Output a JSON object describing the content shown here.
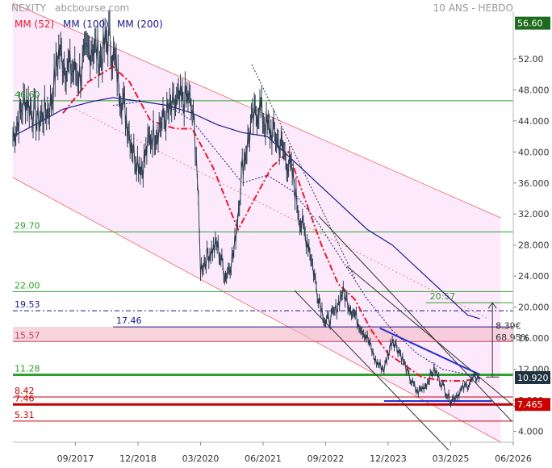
{
  "header": {
    "symbol": "NEXITY",
    "source": "abcbourse.com",
    "period": "10 ANS - HEBDO"
  },
  "legend": [
    {
      "label": "MM (52)",
      "color": "#e8192c"
    },
    {
      "label": "MM (100)",
      "color": "#1a1a8c"
    },
    {
      "label": "MM (200)",
      "color": "#1a1a8c"
    }
  ],
  "colors": {
    "price": "#2c3e50",
    "channel": "#f08080",
    "channel_fill": "#fbe6fb",
    "support_green": "#2ea02e",
    "mm52": "#e8192c",
    "mm100": "#1a1a8c",
    "mm200": "#1a1a8c",
    "blue_level": "#1a1a8c",
    "pink_zone": "#f4b8c4",
    "red_level": "#c00000",
    "badge_top": "#1e6b1e",
    "badge_last": "#1f3340",
    "badge_red": "#cc0000"
  },
  "chart_data": {
    "type": "line",
    "title": "NEXITY",
    "ylim": [
      2.6,
      57.5
    ],
    "yticks": [
      4,
      8,
      12,
      16,
      20,
      24,
      28,
      32,
      36,
      40,
      44,
      48,
      52
    ],
    "ytick_labels": [
      "4.000",
      "8.000",
      "12.000",
      "16.000",
      "20.000",
      "24.000",
      "28.000",
      "32.000",
      "36.000",
      "40.000",
      "44.000",
      "48.000",
      "52.00"
    ],
    "xlim": [
      "2016-06",
      "2026-06"
    ],
    "xtick_labels": [
      "09/2017",
      "12/2018",
      "03/2020",
      "06/2021",
      "09/2022",
      "12/2023",
      "03/2025",
      "06/2026"
    ],
    "xtick_dates": [
      "2017-09",
      "2018-12",
      "2020-03",
      "2021-06",
      "2022-09",
      "2023-12",
      "2025-03",
      "2026-06"
    ],
    "price_series": {
      "name": "NEXITY",
      "points": [
        [
          "2016-06",
          42
        ],
        [
          "2016-09",
          47
        ],
        [
          "2016-12",
          44
        ],
        [
          "2017-03",
          46
        ],
        [
          "2017-05",
          53
        ],
        [
          "2017-07",
          51
        ],
        [
          "2017-10",
          50
        ],
        [
          "2018-01",
          54
        ],
        [
          "2018-03",
          52
        ],
        [
          "2018-05",
          55
        ],
        [
          "2018-07",
          50
        ],
        [
          "2018-09",
          45
        ],
        [
          "2018-11",
          40
        ],
        [
          "2019-01",
          38
        ],
        [
          "2019-03",
          42
        ],
        [
          "2019-06",
          44
        ],
        [
          "2019-09",
          46
        ],
        [
          "2019-12",
          47
        ],
        [
          "2020-01",
          45
        ],
        [
          "2020-02",
          40
        ],
        [
          "2020-03",
          25
        ],
        [
          "2020-05",
          27
        ],
        [
          "2020-07",
          28
        ],
        [
          "2020-09",
          24
        ],
        [
          "2020-11",
          27
        ],
        [
          "2021-01",
          38
        ],
        [
          "2021-03",
          43
        ],
        [
          "2021-05",
          46
        ],
        [
          "2021-07",
          43
        ],
        [
          "2021-09",
          42
        ],
        [
          "2021-11",
          40
        ],
        [
          "2022-01",
          37
        ],
        [
          "2022-03",
          31
        ],
        [
          "2022-05",
          28
        ],
        [
          "2022-07",
          22
        ],
        [
          "2022-09",
          18
        ],
        [
          "2022-11",
          19
        ],
        [
          "2023-01",
          22
        ],
        [
          "2023-03",
          20
        ],
        [
          "2023-05",
          18
        ],
        [
          "2023-07",
          16
        ],
        [
          "2023-09",
          13
        ],
        [
          "2023-11",
          12
        ],
        [
          "2024-01",
          16
        ],
        [
          "2024-03",
          14
        ],
        [
          "2024-05",
          11
        ],
        [
          "2024-07",
          9
        ],
        [
          "2024-09",
          10
        ],
        [
          "2024-11",
          12
        ],
        [
          "2025-01",
          10
        ],
        [
          "2025-03",
          8
        ],
        [
          "2025-05",
          9
        ],
        [
          "2025-07",
          10
        ],
        [
          "2025-09",
          11
        ],
        [
          "2025-10",
          10.92
        ]
      ]
    },
    "series": [
      {
        "name": "MM (52)",
        "style": "dashdot",
        "points": [
          [
            "2017-06",
            45
          ],
          [
            "2017-12",
            49
          ],
          [
            "2018-06",
            51
          ],
          [
            "2018-10",
            49
          ],
          [
            "2019-03",
            44
          ],
          [
            "2019-09",
            43
          ],
          [
            "2020-01",
            43
          ],
          [
            "2020-06",
            38
          ],
          [
            "2020-12",
            30
          ],
          [
            "2021-04",
            34
          ],
          [
            "2021-08",
            38
          ],
          [
            "2021-12",
            40
          ],
          [
            "2022-04",
            34
          ],
          [
            "2022-08",
            28
          ],
          [
            "2022-12",
            23
          ],
          [
            "2023-04",
            21
          ],
          [
            "2023-08",
            17
          ],
          [
            "2023-12",
            14
          ],
          [
            "2024-04",
            12.5
          ],
          [
            "2024-08",
            11
          ],
          [
            "2025-01",
            10.5
          ],
          [
            "2025-06",
            10.5
          ],
          [
            "2025-10",
            10.8
          ]
        ]
      },
      {
        "name": "MM (100)",
        "style": "dotted",
        "points": [
          [
            "2018-06",
            46
          ],
          [
            "2019-01",
            46.5
          ],
          [
            "2019-07",
            46
          ],
          [
            "2020-01",
            44
          ],
          [
            "2020-07",
            40
          ],
          [
            "2021-01",
            36
          ],
          [
            "2021-07",
            37
          ],
          [
            "2022-01",
            35
          ],
          [
            "2022-07",
            31
          ],
          [
            "2023-01",
            26
          ],
          [
            "2023-07",
            21
          ],
          [
            "2024-01",
            17
          ],
          [
            "2024-07",
            14
          ],
          [
            "2025-01",
            12
          ],
          [
            "2025-10",
            11
          ]
        ]
      },
      {
        "name": "MM (200)",
        "style": "solid",
        "points": [
          [
            "2016-06",
            42
          ],
          [
            "2017-01",
            44
          ],
          [
            "2017-06",
            45.5
          ],
          [
            "2018-01",
            46.5
          ],
          [
            "2018-06",
            47
          ],
          [
            "2019-01",
            46.5
          ],
          [
            "2019-07",
            46
          ],
          [
            "2020-01",
            45
          ],
          [
            "2020-07",
            43.5
          ],
          [
            "2021-01",
            42.5
          ],
          [
            "2021-07",
            42
          ],
          [
            "2022-01",
            39
          ],
          [
            "2022-07",
            36
          ],
          [
            "2023-01",
            33
          ],
          [
            "2023-07",
            30
          ],
          [
            "2024-01",
            28
          ],
          [
            "2024-07",
            25
          ],
          [
            "2025-01",
            22
          ],
          [
            "2025-07",
            19
          ],
          [
            "2025-10",
            18.5
          ]
        ]
      }
    ],
    "horizontal_levels": [
      {
        "value": 46.6,
        "label": "46.60",
        "color": "#2ea02e"
      },
      {
        "value": 29.7,
        "label": "29.70",
        "color": "#2ea02e"
      },
      {
        "value": 22.0,
        "label": "22.00",
        "color": "#2ea02e"
      },
      {
        "value": 19.53,
        "label": "19.53",
        "color": "#1a1a8c",
        "style": "dashdot"
      },
      {
        "value": 17.46,
        "label": "17.46",
        "color": "#1a1a8c",
        "from": "2018-06"
      },
      {
        "value": 15.57,
        "label": "15.57",
        "color": "#c04060"
      },
      {
        "value": 11.28,
        "label": "11.28",
        "color": "#2ea02e",
        "thick": true
      },
      {
        "value": 8.42,
        "label": "8.42",
        "color": "#c00000"
      },
      {
        "value": 7.46,
        "label": "7.46",
        "color": "#c00000",
        "thick": true
      },
      {
        "value": 5.31,
        "label": "5.31",
        "color": "#c00000"
      }
    ],
    "zone": {
      "from": 15.57,
      "to": 17.46
    },
    "annotations": {
      "target_label": "20.57",
      "target_value": 20.57,
      "gain_value": "8.39€",
      "gain_percent": "68.95%"
    },
    "badges": [
      {
        "value": 56.6,
        "label": "56.60"
      },
      {
        "value": 10.92,
        "label": "10.920"
      },
      {
        "value": 7.465,
        "label": "7.465"
      }
    ]
  }
}
